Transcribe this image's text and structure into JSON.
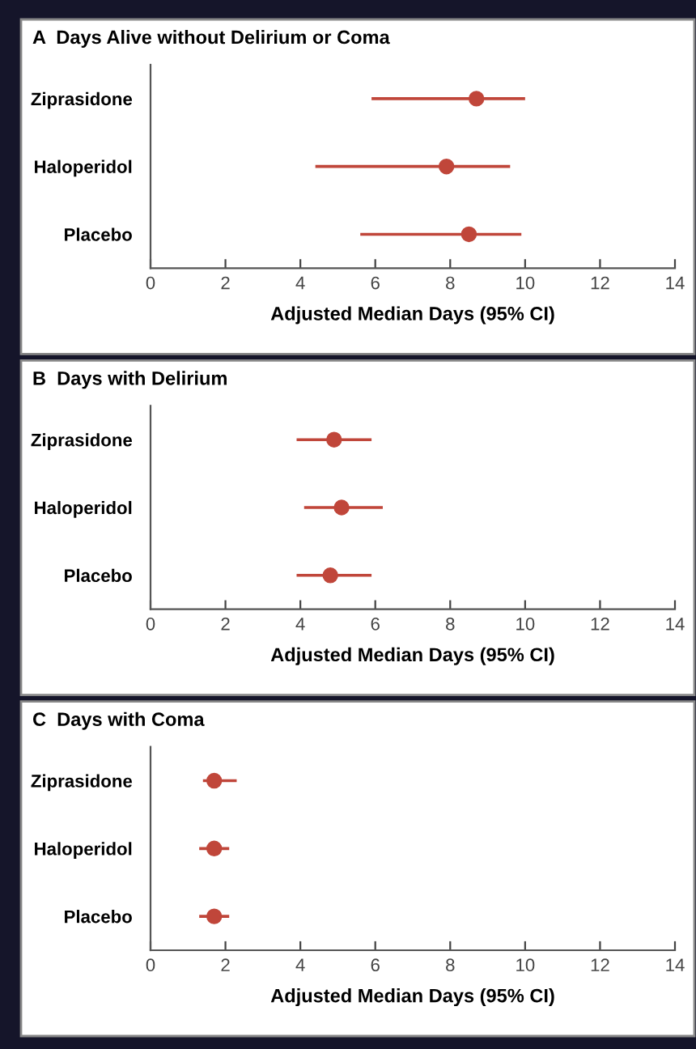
{
  "chart_data": [
    {
      "type": "scatter",
      "orientation": "horizontal",
      "title": "A  Days Alive without Delirium or Coma",
      "xlabel": "Adjusted Median Days (95% CI)",
      "categories": [
        "Ziprasidone",
        "Haloperidol",
        "Placebo"
      ],
      "values": [
        8.7,
        7.9,
        8.5
      ],
      "errors": [
        [
          5.9,
          10.0
        ],
        [
          4.4,
          9.6
        ],
        [
          5.6,
          9.9
        ]
      ],
      "color": "#c0463a",
      "marker": "circle",
      "xlim": [
        0,
        14
      ],
      "xticks": [
        0,
        2,
        4,
        6,
        8,
        10,
        12,
        14
      ]
    },
    {
      "type": "scatter",
      "orientation": "horizontal",
      "title": "B  Days with Delirium",
      "xlabel": "Adjusted Median Days (95% CI)",
      "categories": [
        "Ziprasidone",
        "Haloperidol",
        "Placebo"
      ],
      "values": [
        4.9,
        5.1,
        4.8
      ],
      "errors": [
        [
          3.9,
          5.9
        ],
        [
          4.1,
          6.2
        ],
        [
          3.9,
          5.9
        ]
      ],
      "color": "#c0463a",
      "marker": "circle",
      "xlim": [
        0,
        14
      ],
      "xticks": [
        0,
        2,
        4,
        6,
        8,
        10,
        12,
        14
      ]
    },
    {
      "type": "scatter",
      "orientation": "horizontal",
      "title": "C  Days with Coma",
      "xlabel": "Adjusted Median Days (95% CI)",
      "categories": [
        "Ziprasidone",
        "Haloperidol",
        "Placebo"
      ],
      "values": [
        1.7,
        1.7,
        1.7
      ],
      "errors": [
        [
          1.4,
          2.3
        ],
        [
          1.3,
          2.1
        ],
        [
          1.3,
          2.1
        ]
      ],
      "color": "#c0463a",
      "marker": "circle",
      "xlim": [
        0,
        14
      ],
      "xticks": [
        0,
        2,
        4,
        6,
        8,
        10,
        12,
        14
      ]
    }
  ]
}
